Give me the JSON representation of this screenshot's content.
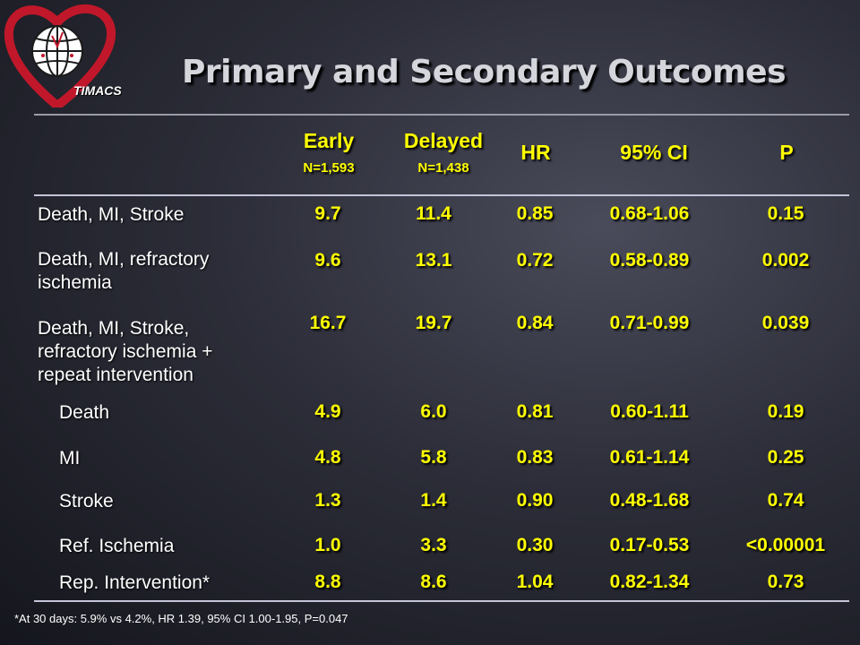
{
  "logo": {
    "text": "TIMACS"
  },
  "title": "Primary and Secondary Outcomes",
  "headers": {
    "early": "Early",
    "early_n": "N=1,593",
    "delayed": "Delayed",
    "delayed_n": "N=1,438",
    "hr": "HR",
    "ci": "95% CI",
    "p": "P"
  },
  "rows": [
    {
      "label": "Death, MI, Stroke",
      "early": "9.7",
      "delayed": "11.4",
      "hr": "0.85",
      "ci": "0.68-1.06",
      "p": "0.15"
    },
    {
      "label": "Death, MI, refractory ischemia",
      "early": "9.6",
      "delayed": "13.1",
      "hr": "0.72",
      "ci": "0.58-0.89",
      "p": "0.002"
    },
    {
      "label": "Death, MI, Stroke, refractory ischemia + repeat intervention",
      "early": "16.7",
      "delayed": "19.7",
      "hr": "0.84",
      "ci": "0.71-0.99",
      "p": "0.039"
    },
    {
      "label": "Death",
      "early": "4.9",
      "delayed": "6.0",
      "hr": "0.81",
      "ci": "0.60-1.11",
      "p": "0.19"
    },
    {
      "label": "MI",
      "early": "4.8",
      "delayed": "5.8",
      "hr": "0.83",
      "ci": "0.61-1.14",
      "p": "0.25"
    },
    {
      "label": "Stroke",
      "early": "1.3",
      "delayed": "1.4",
      "hr": "0.90",
      "ci": "0.48-1.68",
      "p": "0.74"
    },
    {
      "label": "Ref. Ischemia",
      "early": "1.0",
      "delayed": "3.3",
      "hr": "0.30",
      "ci": "0.17-0.53",
      "p": "<0.00001"
    },
    {
      "label": "Rep. Intervention*",
      "early": "8.8",
      "delayed": "8.6",
      "hr": "1.04",
      "ci": "0.82-1.34",
      "p": "0.73"
    }
  ],
  "footnote": "*At 30 days: 5.9% vs 4.2%, HR 1.39, 95% CI 1.00-1.95, P=0.047",
  "colors": {
    "value": "#ffff00",
    "label": "#ffffff",
    "title": "#d5d5dc",
    "logo_heart": "#c0182a"
  }
}
